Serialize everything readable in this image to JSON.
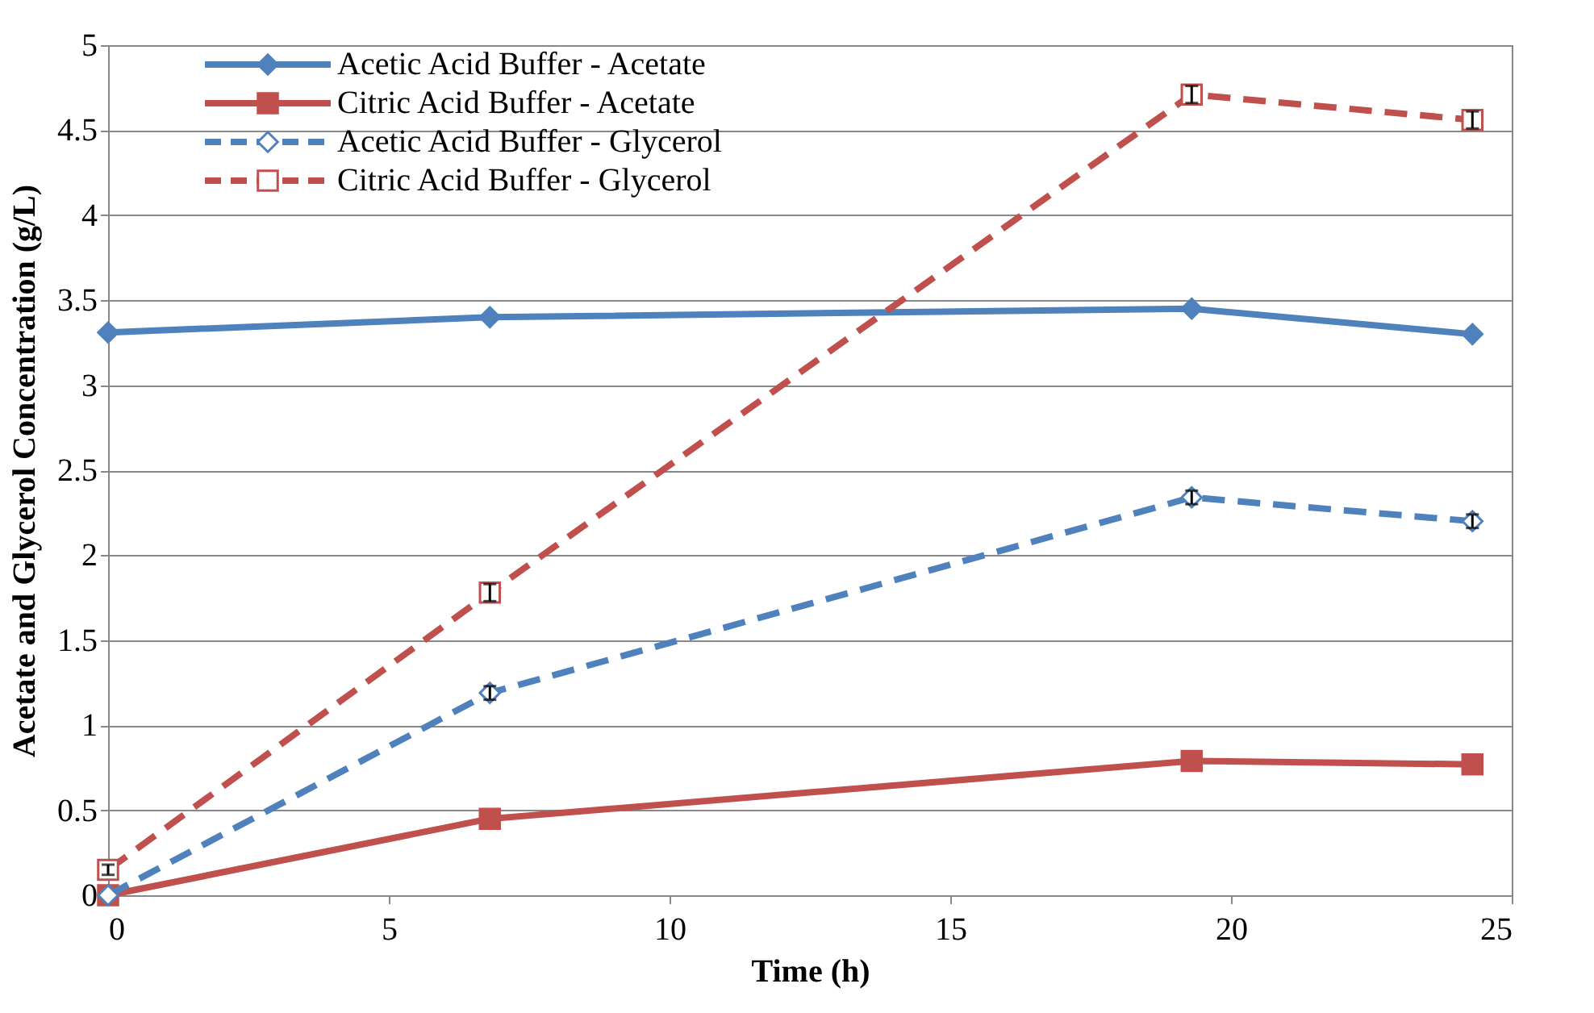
{
  "chart_data": {
    "type": "line",
    "xlabel": "Time (h)",
    "ylabel": "Acetate and Glycerol Concentration (g/L)",
    "x": [
      0,
      6.8,
      19.3,
      24.3
    ],
    "series": [
      {
        "name": "Acetic Acid Buffer - Acetate",
        "color": "#4f81bd",
        "marker": "diamond",
        "line_style": "solid",
        "values": [
          3.31,
          3.4,
          3.45,
          3.3
        ]
      },
      {
        "name": "Citric Acid Buffer - Acetate",
        "color": "#c0504d",
        "marker": "square",
        "line_style": "solid",
        "values": [
          0,
          0.45,
          0.79,
          0.77
        ]
      },
      {
        "name": "Acetic Acid Buffer - Glycerol",
        "color": "#4f81bd",
        "marker": "diamond",
        "line_style": "dashed",
        "values": [
          0,
          1.19,
          2.34,
          2.2
        ],
        "errors": [
          null,
          0.04,
          0.04,
          0.04
        ]
      },
      {
        "name": "Citric Acid Buffer - Glycerol",
        "color": "#c0504d",
        "marker": "square",
        "line_style": "dashed",
        "values": [
          0.15,
          1.78,
          4.71,
          4.56
        ],
        "errors": [
          0.03,
          0.05,
          0.05,
          0.05
        ]
      }
    ],
    "xlim": [
      0,
      25
    ],
    "xticks": [
      0,
      5,
      10,
      15,
      20,
      25
    ],
    "ylim": [
      0,
      5
    ],
    "yticks": [
      0,
      0.5,
      1,
      1.5,
      2,
      2.5,
      3,
      3.5,
      4,
      4.5,
      5
    ],
    "grid": "y",
    "legend": "top left"
  }
}
